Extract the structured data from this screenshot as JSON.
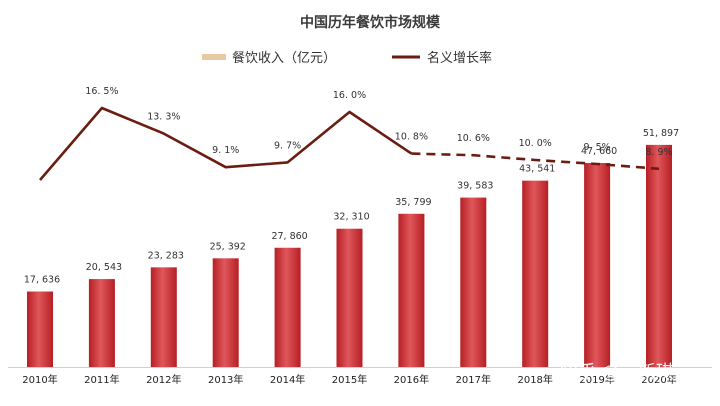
{
  "chart_data": {
    "type": "bar",
    "title": "中国历年餐饮市场规模",
    "categories": [
      "2010年",
      "2011年",
      "2012年",
      "2013年",
      "2014年",
      "2015年",
      "2016年",
      "2017年",
      "2018年",
      "2019年",
      "2020年"
    ],
    "series": [
      {
        "name": "餐饮收入（亿元）",
        "type": "bar",
        "values": [
          17636,
          20543,
          23283,
          25392,
          27860,
          32310,
          35799,
          39583,
          43541,
          47660,
          51897
        ],
        "labels": [
          "17, 636",
          "20, 543",
          "23, 283",
          "25, 392",
          "27, 860",
          "32, 310",
          "35, 799",
          "39, 583",
          "43, 541",
          "47, 660",
          "51, 897"
        ],
        "color": "#c8262b"
      },
      {
        "name": "名义增长率",
        "type": "line",
        "values": [
          null,
          16.5,
          13.3,
          9.1,
          9.7,
          16.0,
          10.8,
          10.6,
          10.0,
          9.5,
          8.9
        ],
        "labels": [
          "",
          "16. 5%",
          "13. 3%",
          "9. 1%",
          "9. 7%",
          "16. 0%",
          "10. 8%",
          "10. 6%",
          "10. 0%",
          "9. 5%",
          "8. 9%"
        ],
        "dashed_from_index": 6,
        "color": "#6b1d12"
      }
    ],
    "legend_position": "top-center",
    "grid": false
  },
  "watermark": "知乎 @喜新琪"
}
